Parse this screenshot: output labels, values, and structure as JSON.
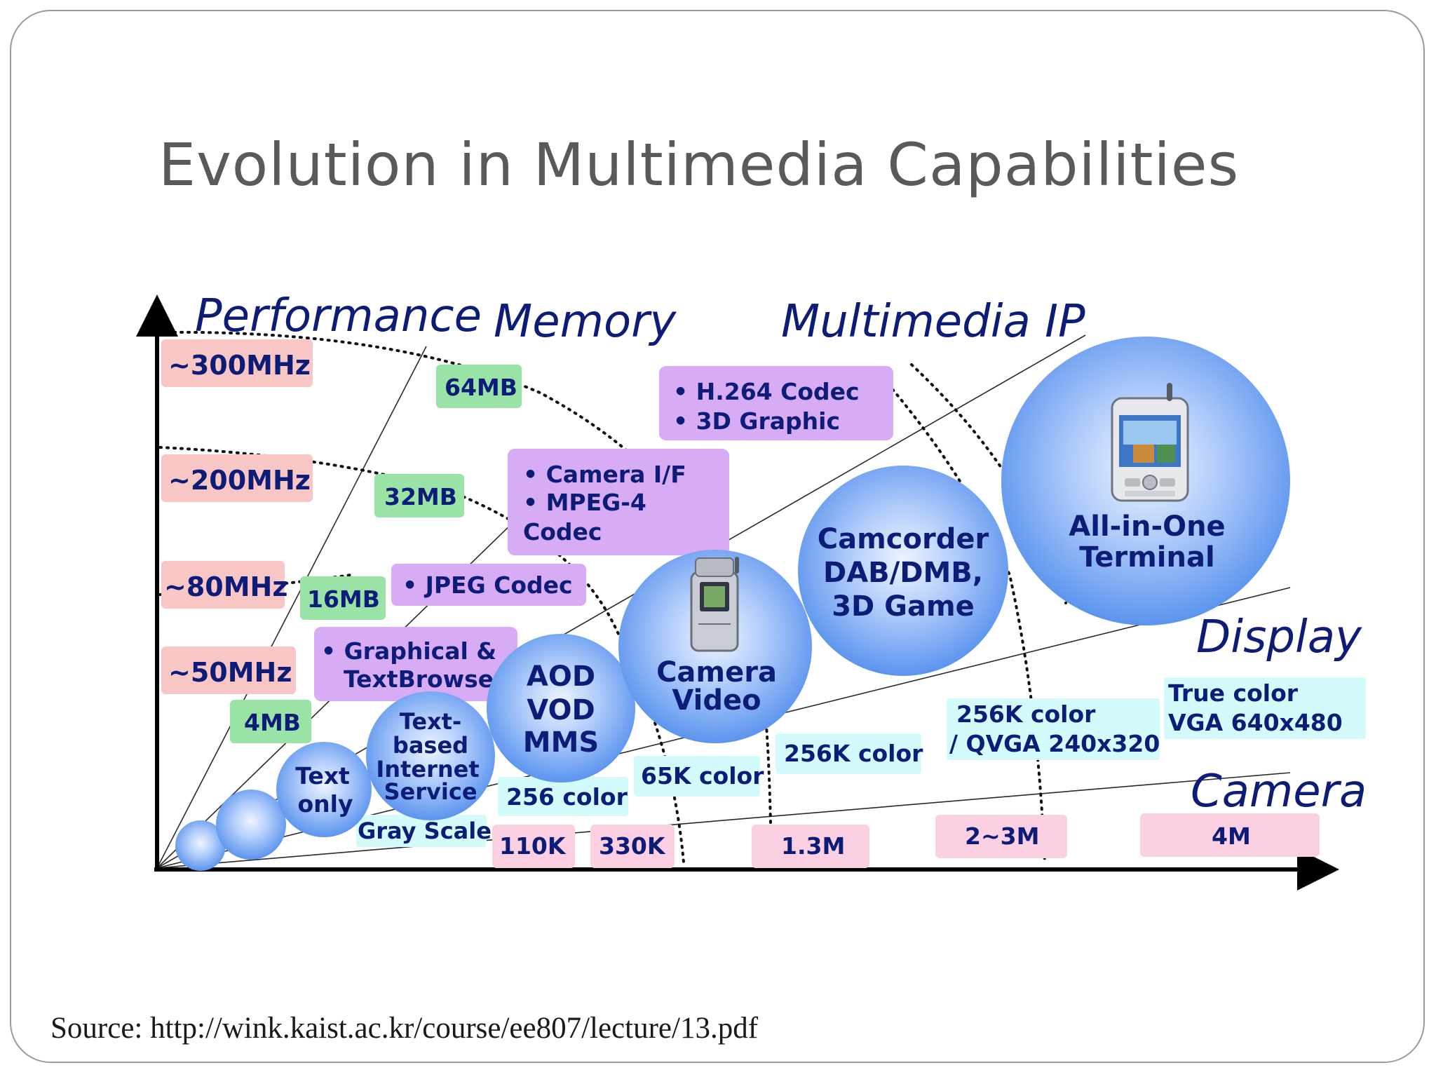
{
  "title": "Evolution in Multimedia Capabilities",
  "source": "Source: http://wink.kaist.ac.kr/course/ee807/lecture/13.pdf",
  "axes": {
    "performance": "Performance",
    "memory": "Memory",
    "multimedia_ip": "Multimedia IP",
    "display": "Display",
    "camera": "Camera"
  },
  "performance_levels": [
    "~300MHz",
    "~200MHz",
    "~80MHz",
    "~50MHz"
  ],
  "memory_levels": [
    "64MB",
    "32MB",
    "16MB",
    "4MB"
  ],
  "multimedia_ip": {
    "h264_codec": "• H.264 Codec",
    "graphic_3d": "• 3D Graphic",
    "camera_if": "• Camera I/F",
    "mpeg4": "• MPEG-4",
    "codec": "Codec",
    "jpeg_codec": "• JPEG Codec",
    "graphical": "• Graphical &",
    "text_browser": "TextBrowser"
  },
  "display_levels": {
    "gray_scale": "Gray Scale",
    "color_256": "256 color",
    "color_65k": "65K color",
    "color_256k": "256K color",
    "qvga_1": "256K color",
    "qvga_2": "/ QVGA 240x320",
    "vga_1": "True color",
    "vga_2": "VGA 640x480"
  },
  "camera_levels": [
    "110K",
    "330K",
    "1.3M",
    "2~3M",
    "4M"
  ],
  "stages": {
    "text_only": [
      "Text",
      "only"
    ],
    "text_internet": [
      "Text-",
      "based",
      "Internet",
      "Service"
    ],
    "aod": [
      "AOD",
      "VOD",
      "MMS"
    ],
    "camera_video": [
      "Camera",
      "Video"
    ],
    "camcorder": [
      "Camcorder",
      "DAB/DMB,",
      "3D Game"
    ],
    "all_in_one": [
      "All-in-One",
      "Terminal"
    ]
  },
  "colors": {
    "axis_label": "#0d1c77",
    "performance_box": "#f9c6c6",
    "memory_box": "#9ae3a6",
    "ip_box": "#d8abf5",
    "display_box": "#d3fbfb",
    "camera_box": "#fbd0e3",
    "bubble_center": "#e4eeff",
    "bubble_edge": "#5f97ee"
  },
  "icons": [
    "flip-phone-icon",
    "pda-phone-icon"
  ]
}
